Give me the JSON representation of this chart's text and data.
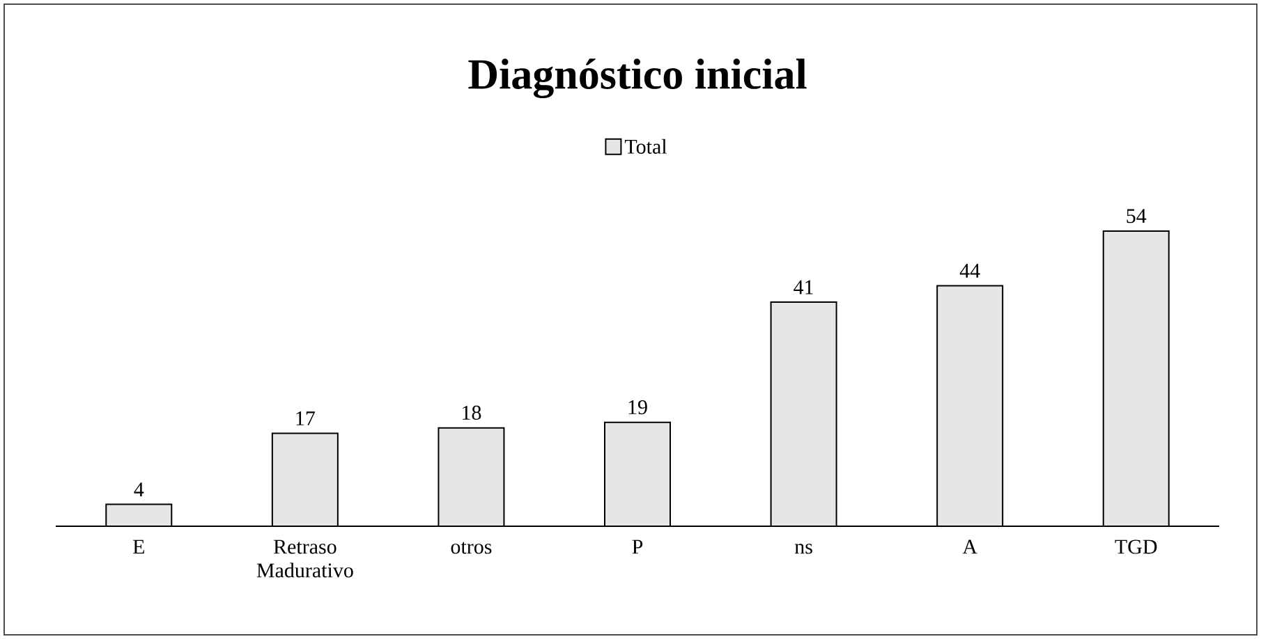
{
  "chart_data": {
    "type": "bar",
    "title": "Diagnóstico inicial",
    "categories": [
      "E",
      "Retraso Madurativo",
      "otros",
      "P",
      "ns",
      "A",
      "TGD"
    ],
    "series": [
      {
        "name": "Total",
        "color": "#e6e6e6",
        "values": [
          4,
          17,
          18,
          19,
          41,
          44,
          54
        ]
      }
    ],
    "data_labels": true,
    "legend": "top"
  }
}
